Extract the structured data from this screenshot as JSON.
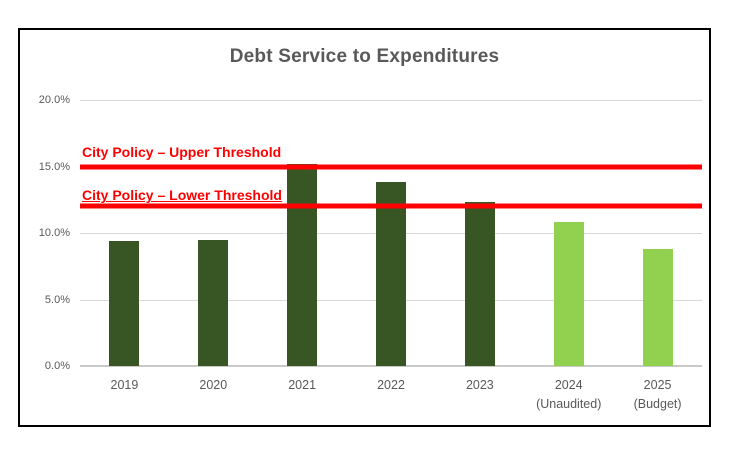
{
  "chart_data": {
    "type": "bar",
    "title": "Debt Service to Expenditures",
    "categories": [
      [
        "2019"
      ],
      [
        "2020"
      ],
      [
        "2021"
      ],
      [
        "2022"
      ],
      [
        "2023"
      ],
      [
        "2024",
        "(Unaudited)"
      ],
      [
        "2025",
        "(Budget)"
      ]
    ],
    "values": [
      9.4,
      9.5,
      15.2,
      13.8,
      12.3,
      10.8,
      8.8
    ],
    "bar_colors": [
      "#375623",
      "#375623",
      "#375623",
      "#375623",
      "#375623",
      "#92D050",
      "#92D050"
    ],
    "xlabel": "",
    "ylabel": "",
    "ylim": [
      0,
      20
    ],
    "yticks": [
      {
        "label": "0.0%",
        "value": 0
      },
      {
        "label": "5.0%",
        "value": 5
      },
      {
        "label": "10.0%",
        "value": 10
      },
      {
        "label": "15.0%",
        "value": 15
      },
      {
        "label": "20.0%",
        "value": 20
      }
    ],
    "grid": true,
    "legend": "none",
    "annotations": [
      {
        "label": "City Policy – Upper Threshold",
        "value": 15,
        "color": "#FF0000",
        "underline": false
      },
      {
        "label": "City Policy – Lower Threshold",
        "value": 12,
        "color": "#FF0000",
        "underline": true
      }
    ],
    "colors": {
      "bar_dark_green": "#375623",
      "bar_light_green": "#92D050",
      "threshold_red": "#FF0000",
      "gridline": "#D9D9D9",
      "axis_text": "#595959",
      "title_text": "#595959"
    }
  }
}
